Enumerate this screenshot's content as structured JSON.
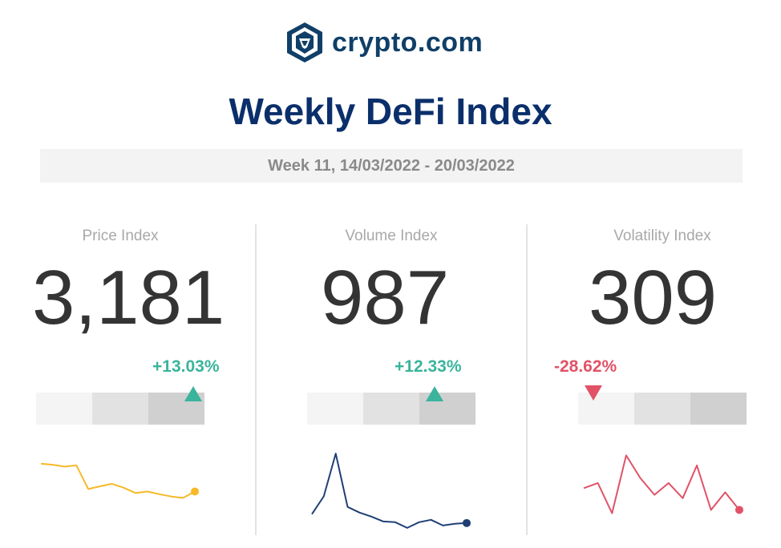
{
  "brand": {
    "name": "crypto.com",
    "color": "#103f68",
    "logo_icon": "crypto-lion-shield-icon"
  },
  "header": {
    "title": "Weekly DeFi Index",
    "week": "Week 11, 14/03/2022 - 20/03/2022"
  },
  "colors": {
    "positive": "#3ab49c",
    "negative": "#e15267",
    "price_line": "#f7b928",
    "volume_line": "#1f3f74",
    "volatility_line": "#e15267"
  },
  "chart_data": [
    {
      "type": "line",
      "title": "Price Index",
      "value": "3,181",
      "change": "+13.03%",
      "direction": "up",
      "range_level": 3,
      "x": [
        1,
        2,
        3,
        4,
        5,
        6,
        7,
        8,
        9,
        10,
        11,
        12,
        13,
        14
      ],
      "values": [
        83,
        81.7,
        79.6,
        81,
        54.2,
        57.3,
        60.1,
        55.6,
        49.6,
        51.4,
        48.4,
        45.7,
        44.1,
        51.4
      ],
      "ylim": [
        0,
        100
      ]
    },
    {
      "type": "line",
      "title": "Volume Index",
      "value": "987",
      "change": "+12.33%",
      "direction": "up",
      "range_level": 3,
      "x": [
        1,
        2,
        3,
        4,
        5,
        6,
        7,
        8,
        9,
        10,
        11,
        12,
        13,
        14
      ],
      "values": [
        25.7,
        45.9,
        94.5,
        33.9,
        27.5,
        22.9,
        17.4,
        16.5,
        10.1,
        16.5,
        19.3,
        12.8,
        14.7,
        15.6
      ],
      "ylim": [
        0,
        100
      ]
    },
    {
      "type": "line",
      "title": "Volatility Index",
      "value": "309",
      "change": "-28.62%",
      "direction": "down",
      "range_level": 1,
      "x": [
        1,
        2,
        3,
        4,
        5,
        6,
        7,
        8,
        9,
        10,
        11,
        12,
        13,
        14
      ],
      "values": [
        55.2,
        61,
        26.7,
        92.4,
        66.7,
        47.6,
        61,
        43.8,
        81,
        30.5,
        50.5,
        30.5,
        null,
        null
      ],
      "ylim": [
        0,
        100
      ]
    }
  ]
}
